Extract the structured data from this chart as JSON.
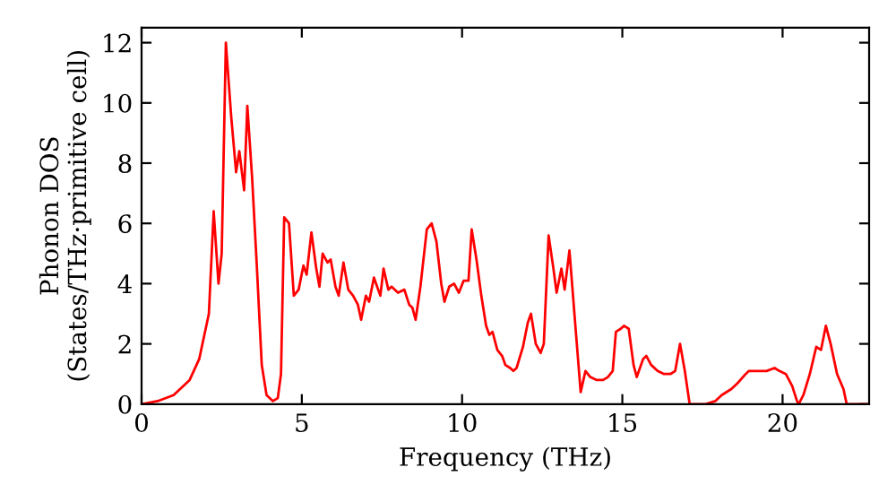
{
  "chart_data": {
    "type": "line",
    "xlabel": "Frequency (THz)",
    "ylabel": "Phonon DOS\n(States/THz·primitive cell)",
    "xlim": [
      0,
      22.7
    ],
    "ylim": [
      0,
      12.5
    ],
    "xticks": [
      0,
      5,
      10,
      15,
      20
    ],
    "yticks": [
      0,
      2,
      4,
      6,
      8,
      10,
      12
    ],
    "grid": false,
    "legend": false,
    "series": [
      {
        "color": "#ff0000",
        "x": [
          0,
          0.5,
          1,
          1.5,
          1.8,
          2.0,
          2.1,
          2.25,
          2.4,
          2.5,
          2.63,
          2.8,
          2.95,
          3.05,
          3.2,
          3.3,
          3.45,
          3.6,
          3.75,
          3.9,
          4.1,
          4.25,
          4.35,
          4.45,
          4.6,
          4.75,
          4.9,
          5.05,
          5.15,
          5.3,
          5.45,
          5.55,
          5.65,
          5.8,
          5.9,
          6.05,
          6.15,
          6.3,
          6.45,
          6.6,
          6.75,
          6.85,
          7.0,
          7.1,
          7.25,
          7.45,
          7.55,
          7.7,
          7.8,
          8.0,
          8.2,
          8.35,
          8.45,
          8.55,
          8.7,
          8.9,
          9.05,
          9.2,
          9.35,
          9.45,
          9.6,
          9.75,
          9.9,
          10.05,
          10.2,
          10.3,
          10.45,
          10.6,
          10.75,
          10.85,
          10.95,
          11.1,
          11.25,
          11.35,
          11.5,
          11.6,
          11.7,
          11.9,
          12.05,
          12.15,
          12.3,
          12.45,
          12.55,
          12.7,
          12.85,
          12.95,
          13.1,
          13.2,
          13.35,
          13.55,
          13.7,
          13.85,
          14.0,
          14.2,
          14.4,
          14.55,
          14.7,
          14.8,
          14.95,
          15.05,
          15.2,
          15.35,
          15.45,
          15.65,
          15.75,
          15.9,
          16.1,
          16.3,
          16.5,
          16.65,
          16.8,
          16.95,
          17.1,
          17.6,
          17.9,
          18.1,
          18.4,
          18.6,
          18.85,
          18.95,
          19.3,
          19.5,
          19.75,
          19.9,
          20.1,
          20.3,
          20.45,
          20.5,
          20.65,
          20.85,
          21.05,
          21.2,
          21.35,
          21.5,
          21.7,
          21.9,
          22.0,
          22.7
        ],
        "values": [
          0,
          0.1,
          0.3,
          0.8,
          1.5,
          2.5,
          3,
          6.4,
          4.0,
          5.0,
          12.0,
          9.5,
          7.7,
          8.4,
          7.1,
          9.9,
          7.5,
          4.5,
          1.3,
          0.3,
          0.1,
          0.2,
          1.0,
          6.2,
          6.0,
          3.6,
          3.8,
          4.6,
          4.3,
          5.7,
          4.5,
          3.9,
          5.0,
          4.7,
          4.8,
          3.9,
          3.6,
          4.7,
          3.8,
          3.6,
          3.3,
          2.8,
          3.6,
          3.4,
          4.2,
          3.6,
          4.5,
          3.8,
          3.9,
          3.7,
          3.8,
          3.3,
          3.2,
          2.8,
          3.9,
          5.8,
          6.0,
          5.4,
          4.0,
          3.4,
          3.9,
          4.0,
          3.7,
          4.1,
          4.1,
          5.8,
          4.8,
          3.6,
          2.6,
          2.3,
          2.4,
          1.8,
          1.6,
          1.3,
          1.2,
          1.1,
          1.2,
          1.9,
          2.7,
          3.0,
          2.0,
          1.7,
          2.0,
          5.6,
          4.5,
          3.7,
          4.5,
          3.8,
          5.1,
          2.4,
          0.4,
          1.1,
          0.9,
          0.8,
          0.8,
          0.9,
          1.1,
          2.4,
          2.5,
          2.6,
          2.5,
          1.3,
          0.9,
          1.5,
          1.6,
          1.3,
          1.1,
          1.0,
          1.0,
          1.1,
          2.0,
          1.1,
          0,
          0,
          0.1,
          0.3,
          0.5,
          0.7,
          1.0,
          1.1,
          1.1,
          1.1,
          1.2,
          1.1,
          1.0,
          0.6,
          0.1,
          0.0,
          0.3,
          1.0,
          1.9,
          1.8,
          2.6,
          2.0,
          1.0,
          0.5,
          0.0,
          0
        ]
      }
    ]
  }
}
